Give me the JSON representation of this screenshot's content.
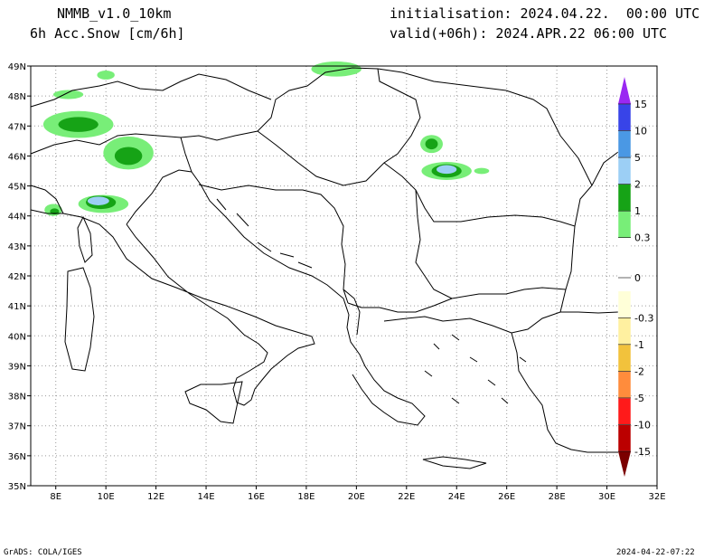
{
  "header": {
    "model": "NMMB_v1.0_10km",
    "field": "6h Acc.Snow [cm/6h]",
    "init": "initialisation: 2024.04.22.  00:00 UTC",
    "valid": "valid(+06h): 2024.APR.22 06:00 UTC"
  },
  "footer": {
    "left": "GrADS: COLA/IGES",
    "right": "2024-04-22-07:22"
  },
  "map": {
    "lon_range": [
      7,
      32
    ],
    "lat_range": [
      35,
      49
    ],
    "grid": "on",
    "lon_ticks": [
      "8E",
      "10E",
      "12E",
      "14E",
      "16E",
      "18E",
      "20E",
      "22E",
      "24E",
      "26E",
      "28E",
      "30E",
      "32E"
    ],
    "lat_ticks": [
      "35N",
      "36N",
      "37N",
      "38N",
      "39N",
      "40N",
      "41N",
      "42N",
      "43N",
      "44N",
      "45N",
      "46N",
      "47N",
      "48N",
      "49N"
    ]
  },
  "colorbar": {
    "colors": [
      "#7b0000",
      "#bb0000",
      "#ff1a1a",
      "#ff8c3c",
      "#f2c23c",
      "#fff0a0",
      "#ffffd8",
      "#ffffff",
      "#ffffff",
      "#78ee78",
      "#16a316",
      "#9ccff5",
      "#4a98e4",
      "#3844e8",
      "#9a28f2"
    ],
    "labels": [
      "-15",
      "-10",
      "-5",
      "-2",
      "-1",
      "-0.3",
      "0",
      "0.3",
      "1",
      "2",
      "5",
      "10",
      "15"
    ]
  },
  "snow_patches": [
    {
      "lon": 8.9,
      "lat": 47.05,
      "rx": 1.4,
      "ry": 0.45,
      "level": 0.3
    },
    {
      "lon": 8.9,
      "lat": 47.05,
      "rx": 0.8,
      "ry": 0.25,
      "level": 1
    },
    {
      "lon": 10.9,
      "lat": 46.1,
      "rx": 1.0,
      "ry": 0.55,
      "level": 0.3
    },
    {
      "lon": 10.9,
      "lat": 46.0,
      "rx": 0.55,
      "ry": 0.3,
      "level": 1
    },
    {
      "lon": 9.9,
      "lat": 44.4,
      "rx": 1.0,
      "ry": 0.3,
      "level": 0.3
    },
    {
      "lon": 9.8,
      "lat": 44.45,
      "rx": 0.6,
      "ry": 0.22,
      "level": 1
    },
    {
      "lon": 9.7,
      "lat": 44.5,
      "rx": 0.45,
      "ry": 0.16,
      "level": 2
    },
    {
      "lon": 7.9,
      "lat": 44.2,
      "rx": 0.35,
      "ry": 0.2,
      "level": 0.3
    },
    {
      "lon": 7.95,
      "lat": 44.15,
      "rx": 0.18,
      "ry": 0.1,
      "level": 1
    },
    {
      "lon": 10.0,
      "lat": 48.7,
      "rx": 0.35,
      "ry": 0.15,
      "level": 0.3
    },
    {
      "lon": 8.5,
      "lat": 48.05,
      "rx": 0.6,
      "ry": 0.15,
      "level": 0.3
    },
    {
      "lon": 19.2,
      "lat": 48.9,
      "rx": 1.0,
      "ry": 0.25,
      "level": 0.3
    },
    {
      "lon": 23.0,
      "lat": 46.4,
      "rx": 0.45,
      "ry": 0.3,
      "level": 0.3
    },
    {
      "lon": 23.0,
      "lat": 46.4,
      "rx": 0.25,
      "ry": 0.18,
      "level": 1
    },
    {
      "lon": 23.6,
      "lat": 45.5,
      "rx": 1.0,
      "ry": 0.3,
      "level": 0.3
    },
    {
      "lon": 23.6,
      "lat": 45.5,
      "rx": 0.6,
      "ry": 0.22,
      "level": 1
    },
    {
      "lon": 23.6,
      "lat": 45.55,
      "rx": 0.42,
      "ry": 0.16,
      "level": 2
    },
    {
      "lon": 25.0,
      "lat": 45.5,
      "rx": 0.3,
      "ry": 0.1,
      "level": 0.3
    }
  ]
}
